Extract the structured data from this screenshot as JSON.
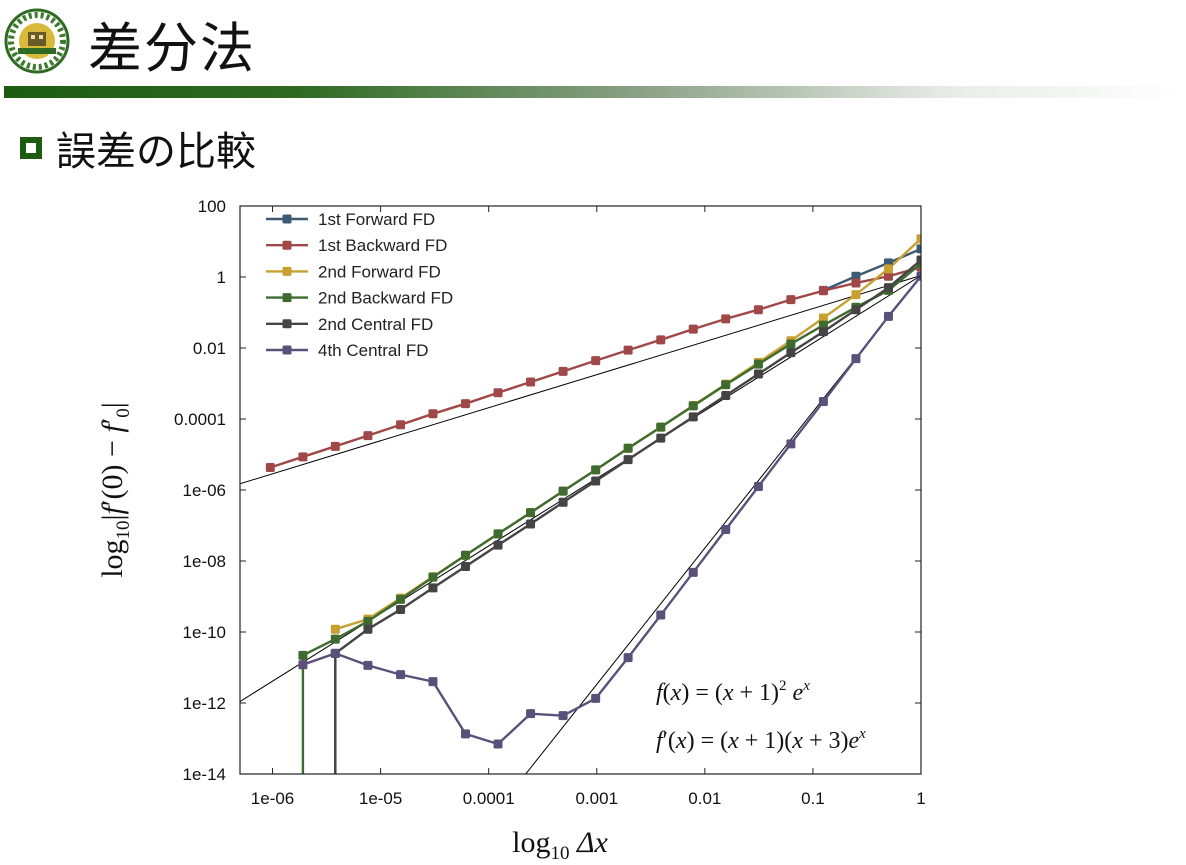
{
  "slide": {
    "title": "差分法",
    "bullet": "誤差の比較"
  },
  "colors": {
    "accent_green": "#1e5b12",
    "fd1_forward": "#3d5a73",
    "fd1_backward": "#a04848",
    "fd2_forward": "#c8a030",
    "fd2_backward": "#3e6b2f",
    "fd2_central": "#444444",
    "fd4_central": "#5a507a"
  },
  "chart_data": {
    "type": "line",
    "xscale": "log",
    "yscale": "log",
    "xlim": [
      5e-07,
      1
    ],
    "ylim": [
      1e-14,
      100
    ],
    "xticks": [
      "1e-06",
      "1e-05",
      "0.0001",
      "0.001",
      "0.01",
      "0.1",
      "1"
    ],
    "yticks": [
      "100",
      "1",
      "0.01",
      "0.0001",
      "1e-06",
      "1e-08",
      "1e-10",
      "1e-12",
      "1e-14"
    ],
    "xlabel": "log10 Δx",
    "ylabel": "log10|f'(0) − f'0|",
    "legend_position": "top-left",
    "grid": false,
    "formulas": [
      "f(x) = (x+1)² eˣ",
      "f'(x) = (x+1)(x+3)eˣ"
    ],
    "series": [
      {
        "name": "1st Forward FD",
        "color": "#3d5a73",
        "x": [
          0.125,
          0.25,
          0.5,
          1
        ],
        "y": [
          0.42,
          1.05,
          2.5,
          6.2
        ]
      },
      {
        "name": "1st Backward FD",
        "color": "#a04848",
        "x": [
          9.54e-07,
          1.91e-06,
          3.81e-06,
          7.63e-06,
          1.53e-05,
          3.05e-05,
          6.1e-05,
          0.000122,
          0.000244,
          0.000488,
          0.000977,
          0.00195,
          0.00391,
          0.00781,
          0.0156,
          0.0313,
          0.0625,
          0.125,
          0.25,
          0.5,
          1
        ],
        "y": [
          4.3e-06,
          8.6e-06,
          1.7e-05,
          3.4e-05,
          6.9e-05,
          0.00014,
          0.00027,
          0.00055,
          0.0011,
          0.0022,
          0.0044,
          0.0087,
          0.017,
          0.034,
          0.066,
          0.12,
          0.23,
          0.41,
          0.68,
          1.05,
          1.9
        ]
      },
      {
        "name": "2nd Forward FD",
        "color": "#c8a030",
        "x": [
          3.81e-06,
          7.63e-06,
          1.53e-05,
          3.05e-05,
          6.1e-05,
          0.000122,
          0.000244,
          0.000488,
          0.000977,
          0.00195,
          0.00391,
          0.00781,
          0.0156,
          0.0313,
          0.0625,
          0.125,
          0.25,
          0.5,
          1
        ],
        "y": [
          1.2e-10,
          2.3e-10,
          9e-10,
          3.6e-09,
          1.45e-08,
          5.8e-08,
          2.3e-07,
          9.3e-07,
          3.7e-06,
          1.5e-05,
          5.9e-05,
          0.00024,
          0.00096,
          0.0039,
          0.016,
          0.07,
          0.32,
          1.7,
          12
        ]
      },
      {
        "name": "2nd Backward FD",
        "color": "#3e6b2f",
        "x": [
          1.91e-06,
          3.81e-06,
          7.63e-06,
          1.53e-05,
          3.05e-05,
          6.1e-05,
          0.000122,
          0.000244,
          0.000488,
          0.000977,
          0.00195,
          0.00391,
          0.00781,
          0.0156,
          0.0313,
          0.0625,
          0.125,
          0.25,
          0.5,
          1
        ],
        "y": [
          2.2e-11,
          6.3e-11,
          2e-10,
          8.3e-10,
          3.5e-09,
          1.45e-08,
          5.8e-08,
          2.3e-07,
          9.3e-07,
          3.7e-06,
          1.5e-05,
          5.9e-05,
          0.000235,
          0.00092,
          0.0035,
          0.013,
          0.044,
          0.14,
          0.42,
          2.4
        ]
      },
      {
        "name": "2nd Central FD",
        "color": "#444444",
        "x": [
          3.81e-06,
          7.63e-06,
          1.53e-05,
          3.05e-05,
          6.1e-05,
          0.000122,
          0.000244,
          0.000488,
          0.000977,
          0.00195,
          0.00391,
          0.00781,
          0.0156,
          0.0313,
          0.0625,
          0.125,
          0.25,
          0.5,
          1
        ],
        "y": [
          2.5e-11,
          1.2e-10,
          4.3e-10,
          1.75e-09,
          7e-09,
          2.8e-08,
          1.1e-07,
          4.5e-07,
          1.8e-06,
          7.2e-06,
          2.9e-05,
          0.000115,
          0.00046,
          0.00185,
          0.0074,
          0.029,
          0.12,
          0.5,
          3.0
        ]
      },
      {
        "name": "4th Central FD",
        "color": "#5a507a",
        "x": [
          1.91e-06,
          3.81e-06,
          7.63e-06,
          1.53e-05,
          3.05e-05,
          6.1e-05,
          0.000122,
          0.000244,
          0.000488,
          0.000977,
          0.00195,
          0.00391,
          0.00781,
          0.0156,
          0.0313,
          0.0625,
          0.125,
          0.25,
          0.5,
          1
        ],
        "y": [
          1.2e-11,
          2.5e-11,
          1.15e-11,
          6.3e-12,
          4e-12,
          1.35e-13,
          7e-14,
          5e-13,
          4.4e-13,
          1.35e-12,
          1.9e-11,
          3e-10,
          4.8e-09,
          7.7e-08,
          1.25e-06,
          2e-05,
          0.00031,
          0.005,
          0.078,
          1.05
        ]
      }
    ],
    "reference_lines": [
      {
        "order": 1,
        "color": "#000000",
        "x": [
          5e-07,
          1
        ],
        "y": [
          1.5e-06,
          1.1
        ]
      },
      {
        "order": 2,
        "color": "#000000",
        "x": [
          5e-07,
          1
        ],
        "y": [
          1.1e-12,
          1.1
        ]
      },
      {
        "order": 4,
        "color": "#000000",
        "x": [
          0.00022,
          1
        ],
        "y": [
          1e-14,
          1.1
        ]
      }
    ]
  }
}
